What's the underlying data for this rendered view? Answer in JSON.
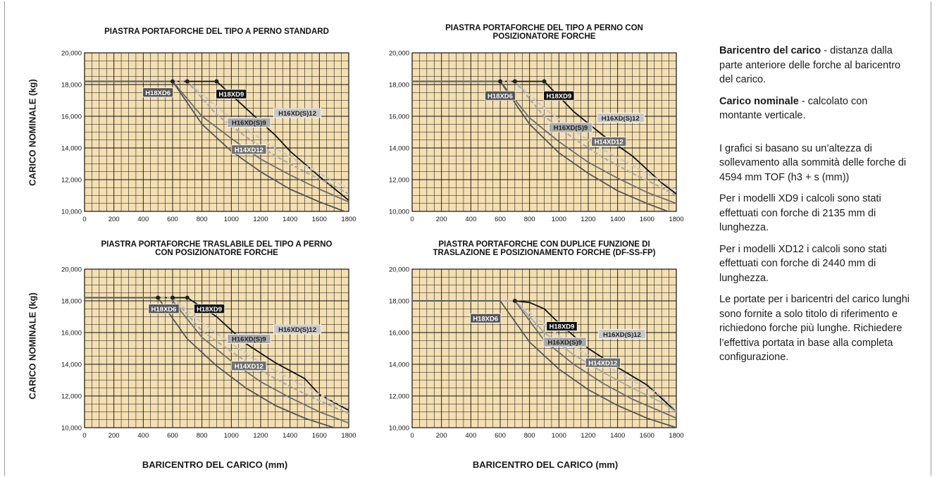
{
  "axis_labels": {
    "y": "CARICO NOMINALE (kg)",
    "x": "BARICENTRO DEL CARICO (mm)"
  },
  "notes": {
    "p1_term": "Baricentro del carico",
    "p1_text": " - distanza dalla parte anteriore delle forche al baricentro del carico.",
    "p2_term": "Carico nominale",
    "p2_text": " - calcolato con montante verticale.",
    "p3": "I grafici si basano su un’altezza di sollevamento alla sommità delle forche di 4594 mm TOF (h3 + s (mm))",
    "p4": "Per i modelli XD9 i calcoli sono stati effettuati con forche di 2135 mm di lunghezza.",
    "p5": "Per i modelli XD12 i calcoli sono stati effettuati con forche di 2440 mm di lunghezza.",
    "p6": "Le portate per i baricentri del carico lunghi sono fornite a solo titolo di riferimento e richiedono forche più lunghe. Richiedere l’effettiva portata in base alla completa configurazione."
  },
  "colors": {
    "grid": "#111111",
    "plot_bg": "#f4dfb2",
    "H18XD9": "#111111",
    "H18XD6": "#555555",
    "H16XD(S)9": "#aaaaaa",
    "H16XD(S)12": "#c8c8c8",
    "H14XD12": "#6e6e6e"
  },
  "chart_data": [
    {
      "type": "line",
      "title": [
        "PIASTRA PORTAFORCHE DEL TIPO A PERNO STANDARD"
      ],
      "xlim": [
        0,
        1800
      ],
      "ylim": [
        10000,
        20000
      ],
      "xticks": [
        "0",
        "200",
        "400",
        "600",
        "800",
        "1000",
        "1200",
        "1400",
        "1600",
        "1800"
      ],
      "yticks": [
        "10,000",
        "12,000",
        "14,000",
        "16,000",
        "18,000",
        "20,000"
      ],
      "series": [
        {
          "name": "H18XD9",
          "style": "solid",
          "x": [
            0,
            900,
            1100,
            1300,
            1400,
            1500,
            1600,
            1800
          ],
          "y": [
            18200,
            18200,
            16500,
            14800,
            13800,
            13000,
            12200,
            10700
          ]
        },
        {
          "name": "H16XD(S)12",
          "style": "dashed",
          "x": [
            0,
            700,
            900,
            1100,
            1300,
            1500,
            1700,
            1800
          ],
          "y": [
            18200,
            18200,
            16600,
            15200,
            14000,
            12900,
            11900,
            11400
          ]
        },
        {
          "name": "H16XD(S)9",
          "style": "dashed",
          "x": [
            0,
            700,
            900,
            1100,
            1300,
            1500,
            1700,
            1800
          ],
          "y": [
            18200,
            18200,
            16100,
            14700,
            13500,
            12500,
            11600,
            11100
          ]
        },
        {
          "name": "H14XD12",
          "style": "solid",
          "x": [
            600,
            800,
            1000,
            1200,
            1400,
            1600,
            1800
          ],
          "y": [
            18200,
            16000,
            14600,
            13300,
            12300,
            11400,
            10600
          ]
        },
        {
          "name": "H18XD6",
          "style": "solid",
          "x": [
            0,
            600,
            800,
            1000,
            1200,
            1400,
            1600,
            1800
          ],
          "y": [
            18200,
            18200,
            15500,
            13800,
            12500,
            11400,
            10600,
            9900
          ]
        }
      ],
      "points": [
        {
          "series": "H18XD6",
          "x": 600,
          "y": 18200
        },
        {
          "series": "H16XD(S)9",
          "x": 700,
          "y": 18200
        },
        {
          "series": "H18XD9",
          "x": 900,
          "y": 18200
        }
      ],
      "tags": [
        {
          "text": "H18XD6",
          "series": "H18XD6",
          "x": 500,
          "y": 17500
        },
        {
          "text": "H18XD9",
          "series": "H18XD9",
          "x": 1000,
          "y": 17400
        },
        {
          "text": "H16XD(S)12",
          "series": "H16XD(S)12",
          "x": 1450,
          "y": 16200
        },
        {
          "text": "H16XD(S)9",
          "series": "H16XD(S)9",
          "x": 1120,
          "y": 15600
        },
        {
          "text": "H14XD12",
          "series": "H14XD12",
          "x": 1120,
          "y": 13900
        }
      ]
    },
    {
      "type": "line",
      "title": [
        "PIASTRA PORTAFORCHE DEL TIPO A PERNO CON",
        "POSIZIONATORE FORCHE"
      ],
      "xlim": [
        0,
        1800
      ],
      "ylim": [
        10000,
        20000
      ],
      "xticks": [
        "0",
        "200",
        "400",
        "600",
        "800",
        "1000",
        "1200",
        "1400",
        "1600",
        "1800"
      ],
      "yticks": [
        "10,000",
        "12,000",
        "14,000",
        "16,000",
        "18,000",
        "20,000"
      ],
      "series": [
        {
          "name": "H18XD9",
          "style": "solid",
          "x": [
            0,
            900,
            1100,
            1300,
            1500,
            1700,
            1800
          ],
          "y": [
            18200,
            18200,
            16300,
            14800,
            13500,
            11800,
            11100
          ]
        },
        {
          "name": "H16XD(S)12",
          "style": "dashed",
          "x": [
            0,
            700,
            900,
            1100,
            1300,
            1500,
            1700,
            1800
          ],
          "y": [
            18200,
            18200,
            16500,
            15100,
            13900,
            12900,
            11900,
            11300
          ]
        },
        {
          "name": "H16XD(S)9",
          "style": "dashed",
          "x": [
            0,
            700,
            900,
            1100,
            1300,
            1500,
            1700,
            1800
          ],
          "y": [
            18200,
            18200,
            16000,
            14600,
            13400,
            12400,
            11500,
            11000
          ]
        },
        {
          "name": "H14XD12",
          "style": "solid",
          "x": [
            600,
            800,
            1000,
            1200,
            1400,
            1600,
            1800
          ],
          "y": [
            18200,
            15900,
            14400,
            13100,
            12100,
            11200,
            10500
          ]
        },
        {
          "name": "H18XD6",
          "style": "solid",
          "x": [
            0,
            600,
            800,
            1000,
            1200,
            1400,
            1600,
            1800
          ],
          "y": [
            18200,
            18200,
            15500,
            13700,
            12400,
            11300,
            10500,
            9800
          ]
        }
      ],
      "points": [
        {
          "series": "H18XD6",
          "x": 600,
          "y": 18200
        },
        {
          "series": "H16XD(S)9",
          "x": 700,
          "y": 18200
        },
        {
          "series": "H18XD9",
          "x": 900,
          "y": 18200
        }
      ],
      "tags": [
        {
          "text": "H18XD6",
          "series": "H18XD6",
          "x": 600,
          "y": 17300
        },
        {
          "text": "H18XD9",
          "series": "H18XD9",
          "x": 1000,
          "y": 17300
        },
        {
          "text": "H16XD(S)12",
          "series": "H16XD(S)12",
          "x": 1420,
          "y": 15900
        },
        {
          "text": "H16XD(S)9",
          "series": "H16XD(S)9",
          "x": 1080,
          "y": 15300
        },
        {
          "text": "H14XD12",
          "series": "H14XD12",
          "x": 1340,
          "y": 14400
        }
      ]
    },
    {
      "type": "line",
      "title": [
        "PIASTRA PORTAFORCHE TRASLABILE DEL TIPO A PERNO",
        "CON POSIZIONATORE FORCHE"
      ],
      "xlim": [
        0,
        1800
      ],
      "ylim": [
        10000,
        20000
      ],
      "xticks": [
        "0",
        "200",
        "400",
        "600",
        "800",
        "1000",
        "1200",
        "1400",
        "1600",
        "1800"
      ],
      "yticks": [
        "10,000",
        "12,000",
        "14,000",
        "16,000",
        "18,000",
        "20,000"
      ],
      "series": [
        {
          "name": "H18XD9",
          "style": "solid",
          "x": [
            0,
            700,
            900,
            1100,
            1300,
            1500,
            1600,
            1800
          ],
          "y": [
            18200,
            18200,
            17000,
            15300,
            14100,
            13100,
            12100,
            11100
          ]
        },
        {
          "name": "H16XD(S)12",
          "style": "dashed",
          "x": [
            0,
            600,
            800,
            1000,
            1200,
            1400,
            1600,
            1800
          ],
          "y": [
            18200,
            18200,
            16600,
            15300,
            14100,
            13100,
            12100,
            11200
          ]
        },
        {
          "name": "H16XD(S)9",
          "style": "dashed",
          "x": [
            0,
            600,
            800,
            1000,
            1200,
            1400,
            1600,
            1800
          ],
          "y": [
            18200,
            18200,
            16100,
            14800,
            13600,
            12600,
            11700,
            10900
          ]
        },
        {
          "name": "H14XD12",
          "style": "solid",
          "x": [
            600,
            800,
            1000,
            1200,
            1400,
            1600,
            1800
          ],
          "y": [
            18000,
            15700,
            14200,
            12900,
            11900,
            11000,
            10300
          ]
        },
        {
          "name": "H18XD6",
          "style": "solid",
          "x": [
            0,
            500,
            700,
            900,
            1100,
            1300,
            1500,
            1800
          ],
          "y": [
            18200,
            18200,
            15600,
            13900,
            12500,
            11400,
            10600,
            9700
          ]
        }
      ],
      "points": [
        {
          "series": "H18XD6",
          "x": 500,
          "y": 18200
        },
        {
          "series": "H16XD(S)9",
          "x": 600,
          "y": 18200
        },
        {
          "series": "H18XD9",
          "x": 700,
          "y": 18200
        }
      ],
      "tags": [
        {
          "text": "H18XD6",
          "series": "H18XD6",
          "x": 540,
          "y": 17500
        },
        {
          "text": "H18XD9",
          "series": "H18XD9",
          "x": 850,
          "y": 17500
        },
        {
          "text": "H16XD(S)12",
          "series": "H16XD(S)12",
          "x": 1450,
          "y": 16200
        },
        {
          "text": "H16XD(S)9",
          "series": "H16XD(S)9",
          "x": 1120,
          "y": 15600
        },
        {
          "text": "H14XD12",
          "series": "H14XD12",
          "x": 1120,
          "y": 13900
        }
      ]
    },
    {
      "type": "line",
      "title": [
        "PIASTRA PORTAFORCHE CON DUPLICE FUNZIONE DI",
        "TRASLAZIONE E POSIZIONAMENTO FORCHE (DF-SS-FP)"
      ],
      "xlim": [
        0,
        1800
      ],
      "ylim": [
        10000,
        20000
      ],
      "xticks": [
        "0",
        "200",
        "400",
        "600",
        "800",
        "1000",
        "1200",
        "1400",
        "1600",
        "1800"
      ],
      "yticks": [
        "10,000",
        "12,000",
        "14,000",
        "16,000",
        "18,000",
        "20,000"
      ],
      "series": [
        {
          "name": "H18XD9",
          "style": "solid",
          "x": [
            0,
            700,
            800,
            900,
            1000,
            1200,
            1400,
            1600,
            1800
          ],
          "y": [
            18000,
            18000,
            17900,
            17500,
            16600,
            15000,
            13800,
            12700,
            11000
          ]
        },
        {
          "name": "H16XD(S)12",
          "style": "dashed",
          "x": [
            0,
            700,
            900,
            1100,
            1300,
            1500,
            1700,
            1800
          ],
          "y": [
            18000,
            18000,
            16500,
            15100,
            14000,
            13000,
            12000,
            11100
          ]
        },
        {
          "name": "H16XD(S)9",
          "style": "solid",
          "x": [
            0,
            700,
            900,
            1100,
            1300,
            1500,
            1700,
            1800
          ],
          "y": [
            18000,
            18000,
            16000,
            14600,
            13500,
            12500,
            11600,
            11000
          ]
        },
        {
          "name": "H14XD12",
          "style": "solid",
          "x": [
            700,
            900,
            1100,
            1300,
            1500,
            1700,
            1800
          ],
          "y": [
            18000,
            15500,
            14000,
            12800,
            11800,
            11000,
            10600
          ]
        },
        {
          "name": "H18XD6",
          "style": "solid",
          "x": [
            0,
            600,
            800,
            1000,
            1200,
            1400,
            1600,
            1800
          ],
          "y": [
            18000,
            18000,
            15400,
            13700,
            12400,
            11400,
            10600,
            10000
          ]
        }
      ],
      "points": [
        {
          "series": "H16XD(S)9",
          "x": 700,
          "y": 18000
        }
      ],
      "tags": [
        {
          "text": "H18XD6",
          "series": "H18XD6",
          "x": 500,
          "y": 16900
        },
        {
          "text": "H18XD9",
          "series": "H18XD9",
          "x": 1020,
          "y": 16400
        },
        {
          "text": "H16XD(S)12",
          "series": "H16XD(S)12",
          "x": 1430,
          "y": 15900
        },
        {
          "text": "H16XD(S)9",
          "series": "H16XD(S)9",
          "x": 1040,
          "y": 15400
        },
        {
          "text": "H14XD12",
          "series": "H14XD12",
          "x": 1300,
          "y": 14100
        }
      ]
    }
  ]
}
